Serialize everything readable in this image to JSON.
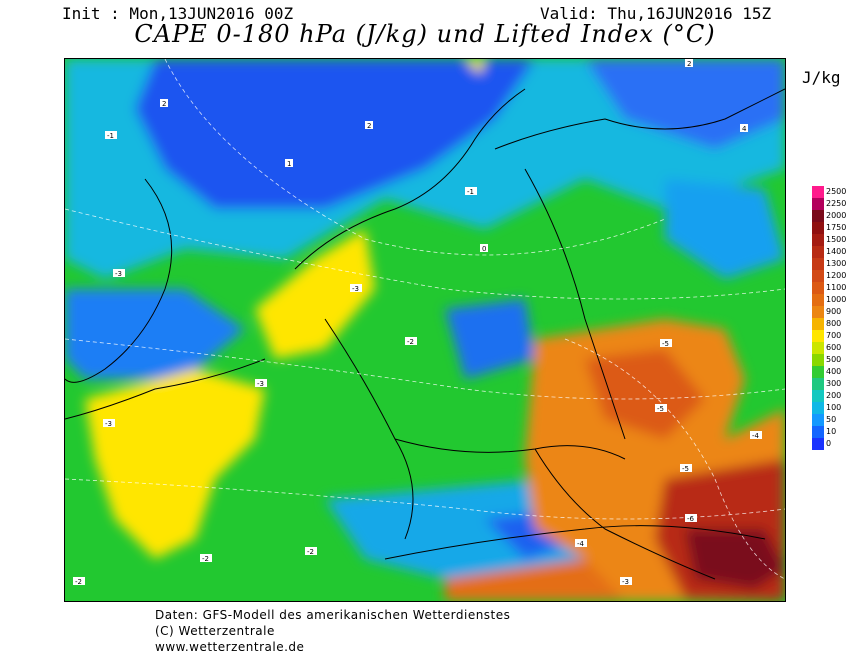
{
  "header": {
    "init": "Init : Mon,13JUN2016 00Z",
    "valid": "Valid: Thu,16JUN2016 15Z",
    "title": "CAPE 0-180 hPa (J/kg) und Lifted Index (°C)"
  },
  "legend": {
    "unit": "J/kg",
    "levels": [
      "2500",
      "2250",
      "2000",
      "1750",
      "1500",
      "1400",
      "1300",
      "1200",
      "1100",
      "1000",
      "900",
      "800",
      "700",
      "600",
      "500",
      "400",
      "300",
      "200",
      "100",
      "50",
      "10",
      "0"
    ],
    "colors": [
      "#ff1a8c",
      "#b3005c",
      "#7a0a1a",
      "#901010",
      "#a51c12",
      "#b82b14",
      "#c63a16",
      "#d24a16",
      "#dc5a14",
      "#e46e12",
      "#ec8612",
      "#f6b400",
      "#ffe600",
      "#cce600",
      "#8ad800",
      "#33cc33",
      "#20c880",
      "#14c8c0",
      "#10b8e6",
      "#1499ff",
      "#1466ff",
      "#1a33ff"
    ]
  },
  "map": {
    "lifted_index_labels": [
      "-1",
      "-2",
      "-3",
      "-4",
      "-5",
      "-6",
      "0",
      "1",
      "2",
      "3",
      "4"
    ]
  },
  "footer": {
    "line1": "Daten: GFS-Modell des amerikanischen Wetterdienstes",
    "line2": "(C) Wetterzentrale",
    "line3": "www.wetterzentrale.de"
  }
}
